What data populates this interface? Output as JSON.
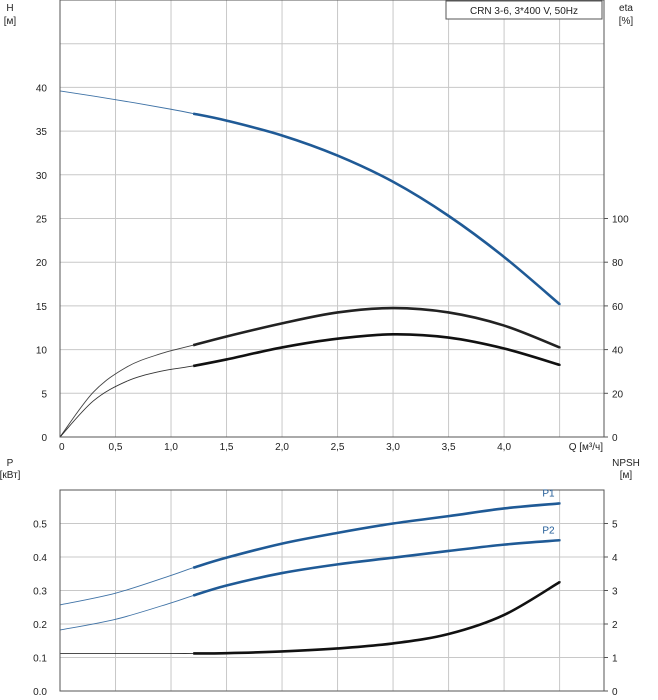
{
  "chart_data": [
    {
      "type": "line",
      "legend": "CRN 3-6, 3*400 V, 50Hz",
      "legend_position": "top-right",
      "grid": true,
      "x_axis": {
        "label": "Q [м³/ч]",
        "lim": [
          0,
          4.9
        ],
        "ticks": [
          0,
          0.5,
          1.0,
          1.5,
          2.0,
          2.5,
          3.0,
          3.5,
          4.0
        ],
        "tick_labels": [
          "0",
          "0,5",
          "1,0",
          "1,5",
          "2,0",
          "2,5",
          "3,0",
          "3,5",
          "4,0"
        ]
      },
      "y_left": {
        "label_top": "H",
        "label_unit": "[м]",
        "lim": [
          0,
          50
        ],
        "ticks": [
          0,
          5,
          10,
          15,
          20,
          25,
          30,
          35,
          40
        ],
        "tick_labels": [
          "0",
          "5",
          "10",
          "15",
          "20",
          "25",
          "30",
          "35",
          "40"
        ]
      },
      "y_right": {
        "label_top": "eta",
        "label_unit": "[%]",
        "lim": [
          0,
          200
        ],
        "ticks": [
          0,
          20,
          40,
          60,
          80,
          100
        ],
        "tick_labels": [
          "0",
          "20",
          "40",
          "60",
          "80",
          "100"
        ]
      },
      "series": [
        {
          "axis": "left",
          "color": "#1f5a96",
          "operating_range": [
            1.2,
            4.5
          ],
          "x": [
            0,
            0.5,
            1.0,
            1.2,
            1.5,
            2.0,
            2.5,
            3.0,
            3.5,
            4.0,
            4.5
          ],
          "y": [
            39.6,
            38.6,
            37.5,
            37.0,
            36.2,
            34.5,
            32.2,
            29.2,
            25.3,
            20.6,
            15.2
          ]
        },
        {
          "axis": "right",
          "color": "#222222",
          "operating_range": [
            1.2,
            4.5
          ],
          "x": [
            0,
            0.3,
            0.6,
            0.9,
            1.2,
            1.5,
            2.0,
            2.5,
            3.0,
            3.5,
            4.0,
            4.5
          ],
          "y": [
            0,
            20.5,
            32.0,
            38.0,
            42.0,
            46.0,
            52.0,
            57.0,
            59.0,
            57.0,
            51.0,
            41.0
          ]
        },
        {
          "axis": "right",
          "color": "#111111",
          "operating_range": [
            1.2,
            4.5
          ],
          "x": [
            0,
            0.3,
            0.6,
            0.9,
            1.2,
            1.5,
            2.0,
            2.5,
            3.0,
            3.5,
            4.0,
            4.5
          ],
          "y": [
            0,
            16.5,
            25.5,
            30.0,
            32.5,
            35.5,
            41.0,
            45.0,
            47.0,
            45.5,
            40.5,
            33.0
          ]
        }
      ]
    },
    {
      "type": "line",
      "grid": true,
      "x_axis": {
        "lim": [
          0,
          4.9
        ],
        "ticks": [
          0,
          0.5,
          1.0,
          1.5,
          2.0,
          2.5,
          3.0,
          3.5,
          4.0
        ]
      },
      "y_left": {
        "label_top": "P",
        "label_unit": "[кВт]",
        "lim": [
          0,
          0.6
        ],
        "ticks": [
          0,
          0.1,
          0.2,
          0.3,
          0.4,
          0.5
        ],
        "tick_labels": [
          "0.0",
          "0.1",
          "0.2",
          "0.3",
          "0.4",
          "0.5"
        ]
      },
      "y_right": {
        "label_top": "NPSH",
        "label_unit": "[м]",
        "lim": [
          0,
          6
        ],
        "ticks": [
          0,
          1,
          2,
          3,
          4,
          5
        ],
        "tick_labels": [
          "0",
          "1",
          "2",
          "3",
          "4",
          "5"
        ]
      },
      "series": [
        {
          "name": "P1",
          "axis": "left",
          "color": "#1f5a96",
          "operating_range": [
            1.2,
            4.5
          ],
          "x": [
            0,
            0.5,
            1.0,
            1.2,
            1.5,
            2.0,
            2.5,
            3.0,
            3.5,
            4.0,
            4.5
          ],
          "y": [
            0.257,
            0.292,
            0.345,
            0.368,
            0.398,
            0.44,
            0.472,
            0.5,
            0.522,
            0.545,
            0.56
          ]
        },
        {
          "name": "P2",
          "axis": "left",
          "color": "#1f5a96",
          "operating_range": [
            1.2,
            4.5
          ],
          "x": [
            0,
            0.5,
            1.0,
            1.2,
            1.5,
            2.0,
            2.5,
            3.0,
            3.5,
            4.0,
            4.5
          ],
          "y": [
            0.182,
            0.214,
            0.263,
            0.285,
            0.315,
            0.352,
            0.378,
            0.398,
            0.418,
            0.437,
            0.45
          ]
        },
        {
          "axis": "right",
          "color": "#111111",
          "operating_range": [
            1.2,
            4.5
          ],
          "x": [
            0,
            0.5,
            1.0,
            1.2,
            1.5,
            2.0,
            2.5,
            3.0,
            3.5,
            4.0,
            4.5
          ],
          "y": [
            1.12,
            1.12,
            1.12,
            1.12,
            1.13,
            1.18,
            1.27,
            1.42,
            1.7,
            2.27,
            3.25
          ]
        }
      ]
    }
  ]
}
